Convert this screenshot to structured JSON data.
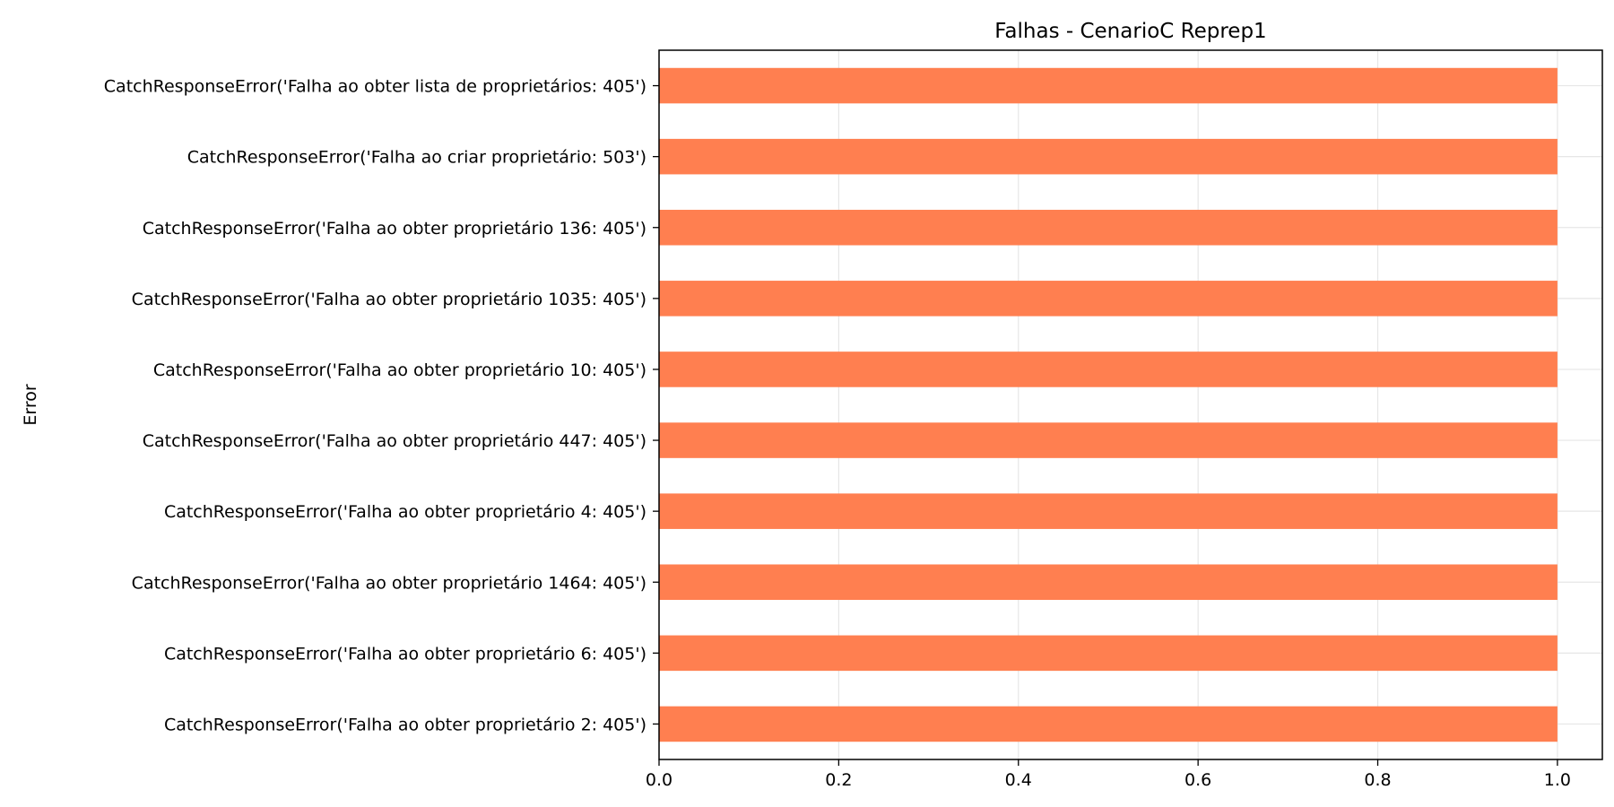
{
  "chart_data": {
    "type": "bar",
    "orientation": "horizontal",
    "title": "Falhas - CenarioC Reprep1",
    "xlabel": "",
    "ylabel": "Error",
    "xlim": [
      0,
      1.05
    ],
    "xticks": [
      "0.0",
      "0.2",
      "0.4",
      "0.6",
      "0.8",
      "1.0"
    ],
    "grid": true,
    "bar_color": "#FF7F50",
    "categories": [
      "CatchResponseError('Falha ao obter lista de proprietários: 405')",
      "CatchResponseError('Falha ao criar proprietário: 503')",
      "CatchResponseError('Falha ao obter proprietário 136: 405')",
      "CatchResponseError('Falha ao obter proprietário 1035: 405')",
      "CatchResponseError('Falha ao obter proprietário 10: 405')",
      "CatchResponseError('Falha ao obter proprietário 447: 405')",
      "CatchResponseError('Falha ao obter proprietário 4: 405')",
      "CatchResponseError('Falha ao obter proprietário 1464: 405')",
      "CatchResponseError('Falha ao obter proprietário 6: 405')",
      "CatchResponseError('Falha ao obter proprietário 2: 405')"
    ],
    "values": [
      1,
      1,
      1,
      1,
      1,
      1,
      1,
      1,
      1,
      1
    ]
  }
}
